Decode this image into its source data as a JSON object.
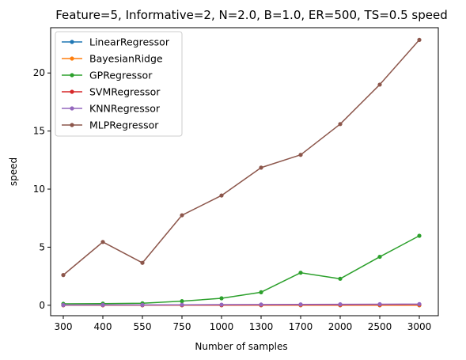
{
  "chart_data": {
    "type": "line",
    "title": "Feature=5, Informative=2, N=2.0, B=1.0, ER=500, TS=0.5 speed",
    "xlabel": "Number of samples",
    "ylabel": "speed",
    "categories": [
      "300",
      "400",
      "550",
      "750",
      "1000",
      "1300",
      "1700",
      "2000",
      "2500",
      "3000"
    ],
    "ylim": [
      -0.9,
      23.9
    ],
    "yticks": [
      0,
      5,
      10,
      15,
      20
    ],
    "yticklabels": [
      "0",
      "5",
      "10",
      "15",
      "20"
    ],
    "grid": false,
    "legend_position": "upper-left",
    "series": [
      {
        "name": "LinearRegressor",
        "color": "#1f77b4",
        "values": [
          0.0,
          0.0,
          0.0,
          0.0,
          0.0,
          0.0,
          0.0,
          0.0,
          0.0,
          0.0
        ]
      },
      {
        "name": "BayesianRidge",
        "color": "#ff7f0e",
        "values": [
          0.0,
          0.0,
          0.0,
          0.0,
          0.0,
          0.0,
          0.0,
          0.0,
          0.0,
          0.0
        ]
      },
      {
        "name": "GPRegressor",
        "color": "#2ca02c",
        "values": [
          0.12,
          0.14,
          0.17,
          0.35,
          0.6,
          1.12,
          2.8,
          2.28,
          4.17,
          5.98
        ]
      },
      {
        "name": "SVMRegressor",
        "color": "#d62728",
        "values": [
          0.01,
          0.01,
          0.01,
          0.02,
          0.02,
          0.03,
          0.04,
          0.04,
          0.05,
          0.06
        ]
      },
      {
        "name": "KNNRegressor",
        "color": "#9467bd",
        "values": [
          0.02,
          0.03,
          0.03,
          0.04,
          0.05,
          0.06,
          0.07,
          0.08,
          0.09,
          0.1
        ]
      },
      {
        "name": "MLPRegressor",
        "color": "#8c564b",
        "values": [
          2.6,
          5.45,
          3.65,
          7.75,
          9.45,
          11.85,
          12.95,
          15.6,
          19.0,
          22.85
        ]
      }
    ]
  }
}
